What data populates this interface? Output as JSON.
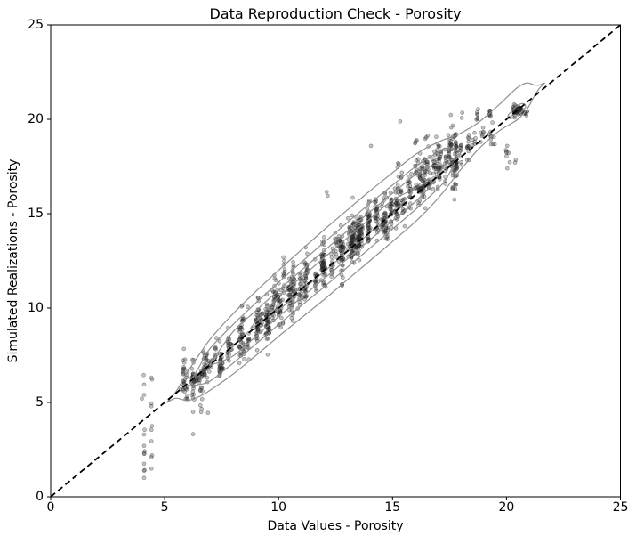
{
  "chart_data": {
    "type": "scatter",
    "title": "Data Reproduction Check - Porosity",
    "xlabel": "Data Values - Porosity",
    "ylabel": "Simulated Realizations - Porosity",
    "xlim": [
      0,
      25
    ],
    "ylim": [
      0,
      25
    ],
    "xticks": [
      0,
      5,
      10,
      15,
      20,
      25
    ],
    "yticks": [
      0,
      5,
      10,
      15,
      20,
      25
    ],
    "grid": false,
    "legend": "none",
    "spine_color": "#000000",
    "identity_line": {
      "from": [
        0,
        0
      ],
      "to": [
        25,
        25
      ],
      "style": "dashed",
      "color": "#000000",
      "width": 1.8,
      "dash": [
        6.5,
        4.2
      ]
    },
    "marker": {
      "radius": 2.0,
      "fill": "#2a2a2a",
      "fill_opacity": 0.28,
      "stroke": "#2a2a2a",
      "stroke_opacity": 0.5,
      "stroke_width": 0.6
    },
    "contours": {
      "color": "#8f8f8f",
      "width": 1.2,
      "spine": [
        [
          5.15,
          -0.1,
          0.02
        ],
        [
          5.5,
          -0.1,
          0.35
        ],
        [
          6.0,
          -0.15,
          0.75
        ],
        [
          6.5,
          -0.1,
          1.1
        ],
        [
          7.0,
          0.0,
          1.35
        ],
        [
          8.0,
          0.1,
          1.6
        ],
        [
          9.0,
          0.18,
          1.7
        ],
        [
          10.0,
          0.25,
          1.75
        ],
        [
          11.0,
          0.28,
          1.8
        ],
        [
          12.0,
          0.3,
          1.85
        ],
        [
          13.0,
          0.33,
          1.85
        ],
        [
          14.0,
          0.35,
          1.85
        ],
        [
          15.0,
          0.35,
          1.82
        ],
        [
          16.0,
          0.35,
          1.78
        ],
        [
          16.7,
          0.32,
          1.6
        ],
        [
          17.3,
          0.3,
          1.35
        ],
        [
          17.8,
          0.3,
          1.05
        ],
        [
          18.3,
          0.32,
          0.85
        ],
        [
          18.7,
          0.35,
          0.72
        ],
        [
          19.2,
          0.38,
          0.68
        ],
        [
          19.7,
          0.4,
          0.7
        ],
        [
          20.1,
          0.38,
          0.78
        ],
        [
          20.5,
          0.35,
          0.85
        ],
        [
          20.9,
          0.33,
          0.7
        ],
        [
          21.2,
          0.3,
          0.5
        ],
        [
          21.45,
          0.28,
          0.3
        ],
        [
          21.65,
          0.25,
          0.05
        ]
      ],
      "levels": [
        {
          "scale": 1.0,
          "xmin": 5.15,
          "xmax": 21.65
        },
        {
          "scale": 0.64,
          "xmin": 6.05,
          "xmax": 18.05
        },
        {
          "scale": 0.4,
          "xmin": 6.95,
          "xmax": 17.25
        },
        {
          "scale": 0.2,
          "xmin": 8.8,
          "xmax": 15.9
        }
      ],
      "blob_loop": [
        [
          20.08,
          20.22
        ],
        [
          20.3,
          20.52
        ],
        [
          20.55,
          20.78
        ],
        [
          20.78,
          20.82
        ],
        [
          20.83,
          20.62
        ],
        [
          20.62,
          20.35
        ],
        [
          20.35,
          20.12
        ],
        [
          20.12,
          20.05
        ]
      ]
    },
    "scatter": {
      "seed": 7,
      "band": {
        "x_min": 5.7,
        "x_max": 18.45,
        "n_wells": 80,
        "extra_mid": {
          "x_min": 9.0,
          "x_max": 17.2,
          "n_wells": 32
        },
        "reals_min": 8,
        "reals_max": 15,
        "well_bias_sigma": 0.42,
        "y_sigma": 0.48,
        "x_jitter": 0.05
      },
      "clusters": [
        [
          6.45,
          6.3,
          12,
          0.06,
          0.14
        ],
        [
          6.62,
          6.56,
          8,
          0.05,
          0.1
        ],
        [
          7.0,
          7.05,
          10,
          0.05,
          0.15
        ],
        [
          7.45,
          6.85,
          9,
          0.06,
          0.12
        ],
        [
          7.9,
          7.95,
          8,
          0.05,
          0.14
        ],
        [
          8.3,
          8.9,
          6,
          0.05,
          0.2
        ],
        [
          16.0,
          18.85,
          4,
          0.04,
          0.15
        ],
        [
          16.45,
          19.05,
          3,
          0.04,
          0.12
        ],
        [
          17.0,
          18.6,
          5,
          0.05,
          0.2
        ],
        [
          17.45,
          19.05,
          2,
          0.03,
          0.1
        ],
        [
          17.6,
          19.9,
          3,
          0.04,
          0.18
        ],
        [
          18.05,
          20.2,
          2,
          0.03,
          0.12
        ],
        [
          18.3,
          18.45,
          5,
          0.05,
          0.25
        ],
        [
          18.55,
          18.6,
          6,
          0.05,
          0.3
        ],
        [
          18.72,
          20.1,
          7,
          0.03,
          0.22
        ],
        [
          18.95,
          19.3,
          7,
          0.05,
          0.28
        ],
        [
          19.27,
          20.35,
          9,
          0.03,
          0.17
        ],
        [
          19.35,
          19.05,
          10,
          0.06,
          0.35
        ],
        [
          20.03,
          17.9,
          8,
          0.04,
          0.6
        ],
        [
          20.35,
          20.5,
          26,
          0.05,
          0.14
        ],
        [
          20.5,
          20.42,
          20,
          0.05,
          0.12
        ],
        [
          20.63,
          20.52,
          14,
          0.05,
          0.13
        ],
        [
          20.85,
          20.5,
          8,
          0.06,
          0.18
        ],
        [
          20.4,
          17.75,
          2,
          0.02,
          0.1
        ],
        [
          15.35,
          19.9,
          1,
          0.01,
          0.01
        ],
        [
          14.05,
          18.6,
          1,
          0.01,
          0.01
        ],
        [
          12.15,
          16.0,
          2,
          0.03,
          0.1
        ]
      ],
      "outliers": [
        [
          4.08,
          6.45
        ],
        [
          4.1,
          5.95
        ],
        [
          4.1,
          5.4
        ],
        [
          4.0,
          5.2
        ],
        [
          4.12,
          3.55
        ],
        [
          4.1,
          3.3
        ],
        [
          4.1,
          2.7
        ],
        [
          4.12,
          2.42
        ],
        [
          4.1,
          2.3
        ],
        [
          4.11,
          2.28
        ],
        [
          4.1,
          1.75
        ],
        [
          4.12,
          1.42
        ],
        [
          4.1,
          1.38
        ],
        [
          4.1,
          1.0
        ],
        [
          4.42,
          6.32
        ],
        [
          4.45,
          6.22
        ],
        [
          4.42,
          4.95
        ],
        [
          4.42,
          4.8
        ],
        [
          4.45,
          3.75
        ],
        [
          4.42,
          3.55
        ],
        [
          4.42,
          2.95
        ],
        [
          4.45,
          2.2
        ],
        [
          4.42,
          2.1
        ],
        [
          4.42,
          1.5
        ],
        [
          5.7,
          5.7
        ],
        [
          6.2,
          5.4
        ],
        [
          6.25,
          5.25
        ],
        [
          6.25,
          4.5
        ],
        [
          6.25,
          3.32
        ],
        [
          6.9,
          4.45
        ],
        [
          6.6,
          5.78
        ],
        [
          6.3,
          5.15
        ]
      ]
    }
  }
}
